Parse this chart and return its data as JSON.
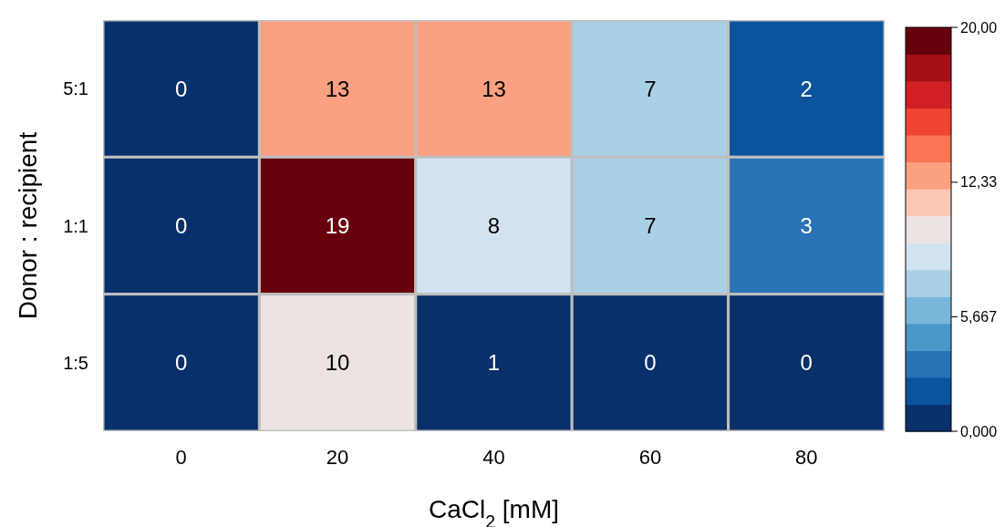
{
  "chart_data": {
    "type": "heatmap",
    "xlabel": "CaCl$_{2}$ [mM]",
    "ylabel": "Donor : recipient",
    "categories": [
      "0",
      "20",
      "40",
      "60",
      "80"
    ],
    "y_categories": [
      "5:1",
      "1:1",
      "1:5"
    ],
    "cells": [
      [
        0,
        13,
        13,
        7,
        2
      ],
      [
        0,
        19,
        8,
        7,
        3
      ],
      [
        0,
        10,
        1,
        0,
        0
      ]
    ],
    "data_labels": true,
    "clim": [
      0,
      20
    ],
    "cticks": [
      {
        "value": 0,
        "label": "0,000"
      },
      {
        "value": 5.667,
        "label": "5,667"
      },
      {
        "value": 12.33,
        "label": "12,33"
      },
      {
        "value": 20,
        "label": "20,00"
      }
    ],
    "colors": [
      "#08306b",
      "#0b539d",
      "#2a72b6",
      "#4a97c9",
      "#7ab6d9",
      "#aad0e5",
      "#d2e3f2",
      "#ece4e2",
      "#fcc8b5",
      "#fca082",
      "#fb7555",
      "#f04532",
      "#d21f25",
      "#a50f15",
      "#67000d"
    ]
  }
}
